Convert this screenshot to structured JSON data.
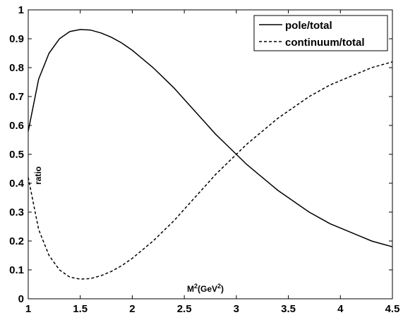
{
  "chart_data": {
    "type": "line",
    "title": "",
    "xlabel": "M2(GeV2)",
    "ylabel": "ratio",
    "xlim": [
      1,
      4.5
    ],
    "ylim": [
      0,
      1
    ],
    "xticks": [
      "1",
      "1.5",
      "2",
      "2.5",
      "3",
      "3.5",
      "4",
      "4.5"
    ],
    "yticks": [
      "0",
      "0.1",
      "0.2",
      "0.3",
      "0.4",
      "0.5",
      "0.6",
      "0.7",
      "0.8",
      "0.9",
      "1"
    ],
    "grid": false,
    "legend_position": "top-right",
    "x": [
      1.0,
      1.1,
      1.2,
      1.3,
      1.4,
      1.5,
      1.6,
      1.7,
      1.8,
      1.9,
      2.0,
      2.1,
      2.2,
      2.3,
      2.4,
      2.5,
      2.6,
      2.7,
      2.8,
      2.9,
      3.0,
      3.1,
      3.2,
      3.3,
      3.4,
      3.5,
      3.6,
      3.7,
      3.8,
      3.9,
      4.0,
      4.1,
      4.2,
      4.3,
      4.4,
      4.5
    ],
    "series": [
      {
        "name": "pole/total",
        "style": "solid",
        "values": [
          0.58,
          0.76,
          0.85,
          0.9,
          0.925,
          0.932,
          0.93,
          0.92,
          0.905,
          0.885,
          0.86,
          0.83,
          0.8,
          0.765,
          0.73,
          0.69,
          0.65,
          0.61,
          0.57,
          0.535,
          0.5,
          0.465,
          0.435,
          0.405,
          0.375,
          0.35,
          0.325,
          0.3,
          0.28,
          0.26,
          0.245,
          0.23,
          0.215,
          0.2,
          0.19,
          0.18
        ]
      },
      {
        "name": "continuum/total",
        "style": "dashed",
        "values": [
          0.42,
          0.24,
          0.15,
          0.1,
          0.075,
          0.068,
          0.07,
          0.08,
          0.095,
          0.115,
          0.14,
          0.17,
          0.2,
          0.235,
          0.27,
          0.31,
          0.35,
          0.39,
          0.43,
          0.465,
          0.5,
          0.535,
          0.565,
          0.595,
          0.625,
          0.65,
          0.675,
          0.7,
          0.72,
          0.74,
          0.755,
          0.77,
          0.785,
          0.8,
          0.81,
          0.82
        ]
      }
    ]
  }
}
